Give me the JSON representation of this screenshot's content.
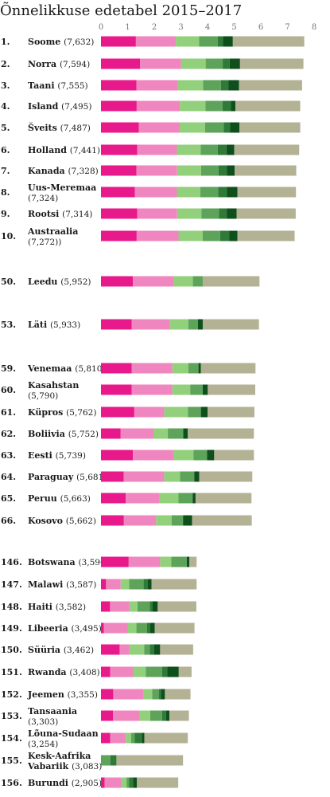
{
  "chart_data": {
    "type": "bar",
    "stacked": true,
    "orientation": "horizontal",
    "title": "Õnnelikkuse edetabel 2015–2017",
    "xlim": [
      0,
      8
    ],
    "xticks": [
      0,
      1,
      2,
      3,
      4,
      5,
      6,
      7,
      8
    ],
    "grid": false,
    "legend": "none",
    "colors": [
      "#e8198b",
      "#f086bf",
      "#93d07c",
      "#5ea35a",
      "#2f7a37",
      "#0e4f1c",
      "#b4b294"
    ],
    "rows": [
      {
        "rank": "1.",
        "name": "Soome",
        "score": "(7,632)",
        "values": [
          1.31,
          1.5,
          0.87,
          0.7,
          0.2,
          0.37,
          2.68
        ]
      },
      {
        "rank": "2.",
        "name": "Norra",
        "score": "(7,594)",
        "values": [
          1.47,
          1.54,
          0.92,
          0.64,
          0.26,
          0.39,
          2.38
        ]
      },
      {
        "rank": "3.",
        "name": "Taani",
        "score": "(7,555)",
        "values": [
          1.33,
          1.56,
          0.94,
          0.67,
          0.28,
          0.4,
          2.37
        ]
      },
      {
        "rank": "4.",
        "name": "Island",
        "score": "(7,495)",
        "values": [
          1.34,
          1.62,
          0.96,
          0.64,
          0.31,
          0.18,
          2.43
        ]
      },
      {
        "rank": "5.",
        "name": "Šveits",
        "score": "(7,487)",
        "values": [
          1.42,
          1.52,
          0.97,
          0.7,
          0.23,
          0.36,
          2.28
        ]
      },
      {
        "rank": "6.",
        "name": "Holland",
        "score": "(7,441)",
        "values": [
          1.36,
          1.49,
          0.89,
          0.64,
          0.33,
          0.29,
          2.44
        ]
      },
      {
        "rank": "7.",
        "name": "Kanada",
        "score": "(7,328)",
        "values": [
          1.33,
          1.53,
          0.9,
          0.65,
          0.32,
          0.29,
          2.31
        ]
      },
      {
        "rank": "8.",
        "name": "Uus-Meremaa",
        "score": "(7,324)",
        "values": [
          1.27,
          1.58,
          0.88,
          0.67,
          0.33,
          0.39,
          2.2
        ]
      },
      {
        "rank": "9.",
        "name": "Rootsi",
        "score": "(7,314)",
        "values": [
          1.36,
          1.5,
          0.91,
          0.66,
          0.29,
          0.37,
          2.22
        ]
      },
      {
        "rank": "10.",
        "name": "Austraalia",
        "score": "(7,272))",
        "values": [
          1.34,
          1.57,
          0.91,
          0.65,
          0.35,
          0.3,
          2.15
        ]
      },
      {
        "rank": "50.",
        "name": "Leedu",
        "score": "(5,952)",
        "values": [
          1.2,
          1.53,
          0.72,
          0.37,
          0.0,
          0.0,
          2.13
        ]
      },
      {
        "rank": "53.",
        "name": "Läti",
        "score": "(5,933)",
        "values": [
          1.15,
          1.44,
          0.69,
          0.36,
          0.0,
          0.18,
          2.11
        ]
      },
      {
        "rank": "59.",
        "name": "Venemaa",
        "score": "(5,810)",
        "values": [
          1.15,
          1.53,
          0.6,
          0.38,
          0.0,
          0.09,
          2.05
        ]
      },
      {
        "rank": "60.",
        "name": "Kasahstan",
        "score": "(5,790)",
        "values": [
          1.15,
          1.53,
          0.67,
          0.47,
          0.0,
          0.19,
          1.78
        ]
      },
      {
        "rank": "61.",
        "name": "Küpros",
        "score": "(5,762)",
        "values": [
          1.25,
          1.12,
          0.89,
          0.49,
          0.0,
          0.25,
          1.76
        ]
      },
      {
        "rank": "62.",
        "name": "Boliivia",
        "score": "(5,752)",
        "values": [
          0.74,
          1.23,
          0.54,
          0.58,
          0.0,
          0.17,
          2.48
        ]
      },
      {
        "rank": "63.",
        "name": "Eesti",
        "score": "(5,739)",
        "values": [
          1.2,
          1.53,
          0.74,
          0.51,
          0.0,
          0.27,
          1.49
        ]
      },
      {
        "rank": "64.",
        "name": "Paraguay",
        "score": "(5,681)",
        "values": [
          0.85,
          1.52,
          0.6,
          0.53,
          0.0,
          0.19,
          1.99
        ]
      },
      {
        "rank": "65.",
        "name": "Peruu",
        "score": "(5,663)",
        "values": [
          0.93,
          1.25,
          0.73,
          0.53,
          0.0,
          0.11,
          2.1
        ]
      },
      {
        "rank": "66.",
        "name": "Kosovo",
        "score": "(5,662)",
        "values": [
          0.86,
          1.21,
          0.58,
          0.43,
          0.0,
          0.34,
          2.24
        ]
      },
      {
        "rank": "146.",
        "name": "Botswana",
        "score": "(3,590)",
        "values": [
          1.04,
          1.18,
          0.42,
          0.58,
          0.0,
          0.1,
          0.27
        ]
      },
      {
        "rank": "147.",
        "name": "Malawi",
        "score": "(3,587)",
        "values": [
          0.19,
          0.55,
          0.32,
          0.54,
          0.15,
          0.15,
          1.69
        ]
      },
      {
        "rank": "148.",
        "name": "Haiti",
        "score": "(3,582)",
        "values": [
          0.34,
          0.73,
          0.3,
          0.46,
          0.11,
          0.19,
          1.45
        ]
      },
      {
        "rank": "149.",
        "name": "Libeeria",
        "score": "(3,495)",
        "values": [
          0.11,
          0.89,
          0.33,
          0.4,
          0.11,
          0.18,
          1.49
        ]
      },
      {
        "rank": "150.",
        "name": "Süüria",
        "score": "(3,462)",
        "values": [
          0.7,
          0.37,
          0.55,
          0.21,
          0.16,
          0.23,
          1.24
        ]
      },
      {
        "rank": "151.",
        "name": "Rwanda",
        "score": "(3,408)",
        "values": [
          0.35,
          0.86,
          0.47,
          0.61,
          0.2,
          0.43,
          0.48
        ]
      },
      {
        "rank": "152.",
        "name": "Jeemen",
        "score": "(3,355)",
        "values": [
          0.46,
          1.14,
          0.32,
          0.25,
          0.08,
          0.15,
          0.96
        ]
      },
      {
        "rank": "153.",
        "name": "Tansaania",
        "score": "(3,303)",
        "values": [
          0.45,
          1.0,
          0.4,
          0.44,
          0.15,
          0.13,
          0.73
        ]
      },
      {
        "rank": "154.",
        "name": "Lõuna-Sudaan",
        "score": "(3,254)",
        "values": [
          0.35,
          0.58,
          0.2,
          0.13,
          0.27,
          0.1,
          1.63
        ]
      },
      {
        "rank": "155.",
        "name": "Kesk-Aafrika Vabariik",
        "score": "(3,083)",
        "values": [
          0.0,
          0.0,
          0.0,
          0.35,
          0.23,
          0.0,
          2.5
        ]
      },
      {
        "rank": "156.",
        "name": "Burundi",
        "score": "(2,905)",
        "values": [
          0.14,
          0.62,
          0.2,
          0.1,
          0.14,
          0.15,
          1.55
        ]
      }
    ]
  }
}
